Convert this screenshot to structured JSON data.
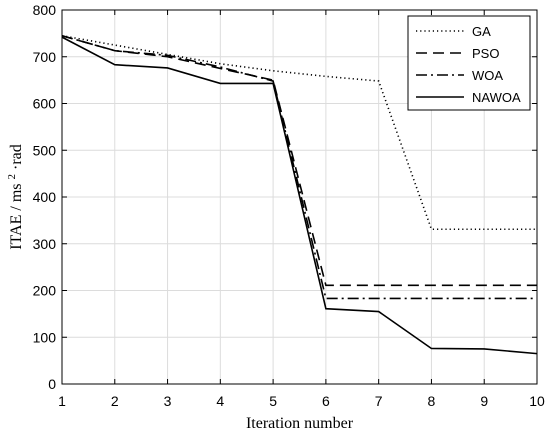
{
  "chart_data": {
    "type": "line",
    "xlabel": "Iteration number",
    "ylabel_main": "ITAE / ms",
    "ylabel_sup": "2",
    "ylabel_tail": "·rad",
    "xlim": [
      1,
      10
    ],
    "ylim": [
      0,
      800
    ],
    "x_ticks": [
      "1",
      "2",
      "3",
      "4",
      "5",
      "6",
      "7",
      "8",
      "9",
      "10"
    ],
    "y_ticks": [
      "0",
      "100",
      "200",
      "300",
      "400",
      "500",
      "600",
      "700",
      "800"
    ],
    "grid": true,
    "legend_position": "top-right",
    "x": [
      1,
      2,
      3,
      4,
      5,
      6,
      7,
      8,
      9,
      10
    ],
    "series": [
      {
        "name": "GA",
        "style": "dotted",
        "values": [
          745,
          725,
          705,
          685,
          670,
          658,
          648,
          331,
          331,
          331
        ]
      },
      {
        "name": "PSO",
        "style": "dashed",
        "values": [
          745,
          713,
          700,
          675,
          650,
          211,
          211,
          211,
          211,
          211
        ]
      },
      {
        "name": "WOA",
        "style": "dashdot",
        "values": [
          745,
          713,
          703,
          678,
          648,
          183,
          183,
          183,
          183,
          183
        ]
      },
      {
        "name": "NAWOA",
        "style": "solid",
        "values": [
          742,
          683,
          676,
          643,
          643,
          161,
          155,
          76,
          75,
          65
        ]
      }
    ]
  }
}
